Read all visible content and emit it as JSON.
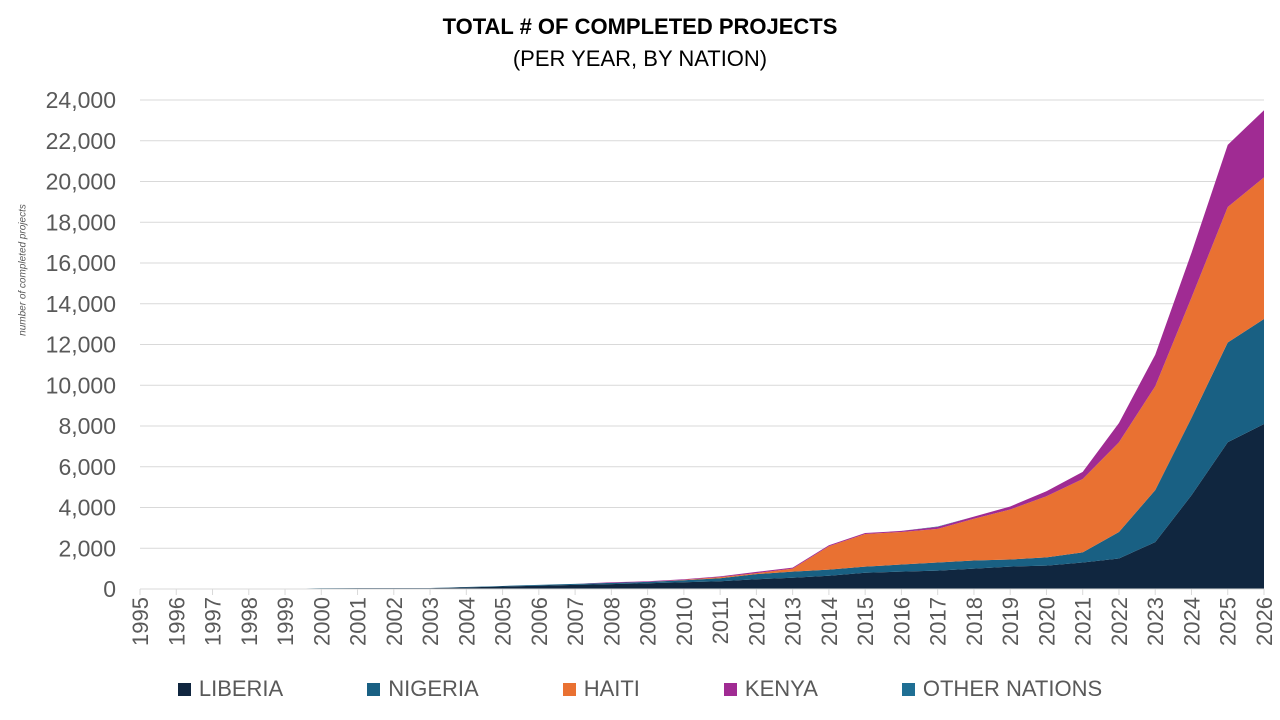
{
  "chart_data": {
    "type": "area",
    "stacked": true,
    "title": "TOTAL # OF COMPLETED PROJECTS",
    "subtitle": "(PER YEAR, BY NATION)",
    "xlabel": "",
    "ylabel": "number of completed projects",
    "ylim": [
      0,
      24000
    ],
    "yticks": [
      "0",
      "2,000",
      "4,000",
      "6,000",
      "8,000",
      "10,000",
      "12,000",
      "14,000",
      "16,000",
      "18,000",
      "20,000",
      "22,000",
      "24,000"
    ],
    "grid": true,
    "legend": "bottom",
    "x": [
      "1995",
      "1996",
      "1997",
      "1998",
      "1999",
      "2000",
      "2001",
      "2002",
      "2003",
      "2004",
      "2005",
      "2006",
      "2007",
      "2008",
      "2009",
      "2010",
      "2011",
      "2012",
      "2013",
      "2014",
      "2015",
      "2016",
      "2017",
      "2018",
      "2019",
      "2020",
      "2021",
      "2022",
      "2023",
      "2024",
      "2025",
      "2026"
    ],
    "series": [
      {
        "name": "LIBERIA",
        "color": "#10263f",
        "values": [
          0,
          0,
          0,
          0,
          0,
          30,
          40,
          40,
          40,
          80,
          120,
          160,
          200,
          240,
          280,
          330,
          380,
          480,
          550,
          650,
          800,
          850,
          900,
          1000,
          1100,
          1150,
          1300,
          1500,
          2300,
          4600,
          7200,
          8100
        ]
      },
      {
        "name": "NIGERIA",
        "color": "#196083",
        "values": [
          0,
          0,
          0,
          0,
          0,
          10,
          10,
          10,
          10,
          20,
          30,
          40,
          50,
          60,
          70,
          100,
          150,
          250,
          300,
          300,
          300,
          350,
          400,
          400,
          350,
          400,
          500,
          1300,
          2550,
          3800,
          4900,
          5150
        ]
      },
      {
        "name": "HAITI",
        "color": "#e97132",
        "values": [
          0,
          0,
          0,
          0,
          0,
          0,
          0,
          0,
          0,
          0,
          0,
          0,
          0,
          0,
          0,
          20,
          50,
          50,
          150,
          1150,
          1600,
          1600,
          1650,
          2050,
          2450,
          3000,
          3600,
          4400,
          5100,
          5900,
          6650,
          6950
        ]
      },
      {
        "name": "KENYA",
        "color": "#a02b93",
        "values": [
          0,
          0,
          0,
          0,
          0,
          0,
          0,
          0,
          0,
          0,
          0,
          0,
          0,
          30,
          30,
          30,
          40,
          60,
          50,
          50,
          50,
          50,
          100,
          100,
          150,
          250,
          350,
          950,
          1550,
          2200,
          3050,
          3300
        ]
      },
      {
        "name": "OTHER NATIONS",
        "color": "#1f6f94",
        "values": [
          0,
          0,
          0,
          0,
          0,
          0,
          0,
          0,
          0,
          0,
          0,
          0,
          0,
          0,
          0,
          0,
          0,
          0,
          0,
          0,
          0,
          0,
          20,
          0,
          0,
          0,
          0,
          0,
          0,
          0,
          0,
          0
        ]
      }
    ]
  }
}
